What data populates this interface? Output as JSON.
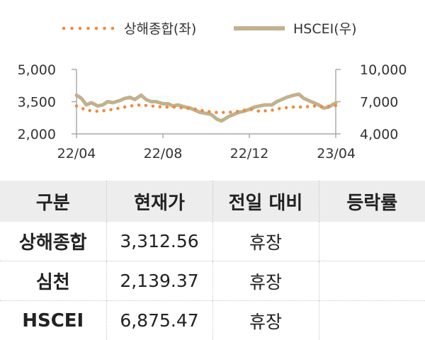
{
  "chart_data": {
    "type": "line",
    "legend": [
      "상해종합(좌)",
      "HSCEI(우)"
    ],
    "legend_position": "top",
    "x_ticks": [
      "22/04",
      "22/08",
      "22/12",
      "23/04"
    ],
    "y_left_ticks": [
      "5,000",
      "3,500",
      "2,000"
    ],
    "y_right_ticks": [
      "10,000",
      "7,000",
      "4,000"
    ],
    "y_left_range": [
      2000,
      5000
    ],
    "y_right_range": [
      4000,
      10000
    ],
    "grid": false,
    "colors": {
      "shanghai": "#ee8a3c",
      "hscei": "#c2b18e",
      "axis": "#aaaaaa"
    },
    "series": [
      {
        "name": "상해종합(좌)",
        "axis": "left",
        "style": "dotted",
        "x": [
          "2022-04-01",
          "2022-04-15",
          "2022-05-01",
          "2022-05-15",
          "2022-06-01",
          "2022-06-15",
          "2022-07-01",
          "2022-07-15",
          "2022-08-01",
          "2022-08-15",
          "2022-09-01",
          "2022-09-15",
          "2022-10-01",
          "2022-10-15",
          "2022-11-01",
          "2022-11-15",
          "2022-12-01",
          "2022-12-15",
          "2023-01-01",
          "2023-01-15",
          "2023-02-01",
          "2023-02-15",
          "2023-03-01",
          "2023-03-15",
          "2023-04-01"
        ],
        "values": [
          3300,
          3100,
          3050,
          3100,
          3200,
          3300,
          3350,
          3300,
          3250,
          3250,
          3200,
          3150,
          3050,
          3000,
          3000,
          3050,
          3150,
          3050,
          3100,
          3200,
          3250,
          3250,
          3300,
          3250,
          3320
        ]
      },
      {
        "name": "HSCEI(우)",
        "axis": "right",
        "style": "solid",
        "x": [
          "2022-04-01",
          "2022-04-08",
          "2022-04-15",
          "2022-04-22",
          "2022-05-01",
          "2022-05-08",
          "2022-05-15",
          "2022-05-22",
          "2022-06-01",
          "2022-06-08",
          "2022-06-15",
          "2022-06-22",
          "2022-07-01",
          "2022-07-08",
          "2022-07-15",
          "2022-07-22",
          "2022-08-01",
          "2022-08-08",
          "2022-08-15",
          "2022-08-22",
          "2022-09-01",
          "2022-09-08",
          "2022-09-15",
          "2022-09-22",
          "2022-10-01",
          "2022-10-08",
          "2022-10-15",
          "2022-10-22",
          "2022-11-01",
          "2022-11-08",
          "2022-11-15",
          "2022-11-22",
          "2022-12-01",
          "2022-12-08",
          "2022-12-15",
          "2022-12-22",
          "2023-01-01",
          "2023-01-08",
          "2023-01-15",
          "2023-01-22",
          "2023-02-01",
          "2023-02-08",
          "2023-02-15",
          "2023-02-22",
          "2023-03-01",
          "2023-03-08",
          "2023-03-15",
          "2023-03-22",
          "2023-04-01"
        ],
        "values": [
          7600,
          7300,
          6700,
          6900,
          6600,
          6700,
          7000,
          6900,
          7100,
          7300,
          7400,
          7200,
          7600,
          7200,
          7000,
          7000,
          6800,
          6800,
          6600,
          6700,
          6500,
          6400,
          6200,
          6000,
          5900,
          5800,
          5400,
          5200,
          5600,
          5800,
          6000,
          6100,
          6300,
          6500,
          6600,
          6700,
          6700,
          7000,
          7200,
          7400,
          7600,
          7700,
          7300,
          7100,
          6900,
          6700,
          6400,
          6500,
          6880
        ]
      }
    ]
  },
  "table": {
    "headers": [
      "구분",
      "현재가",
      "전일 대비",
      "등락률"
    ],
    "rows": [
      [
        "상해종합",
        "3,312.56",
        "휴장",
        ""
      ],
      [
        "심천",
        "2,139.37",
        "휴장",
        ""
      ],
      [
        "HSCEI",
        "6,875.47",
        "휴장",
        ""
      ]
    ]
  }
}
